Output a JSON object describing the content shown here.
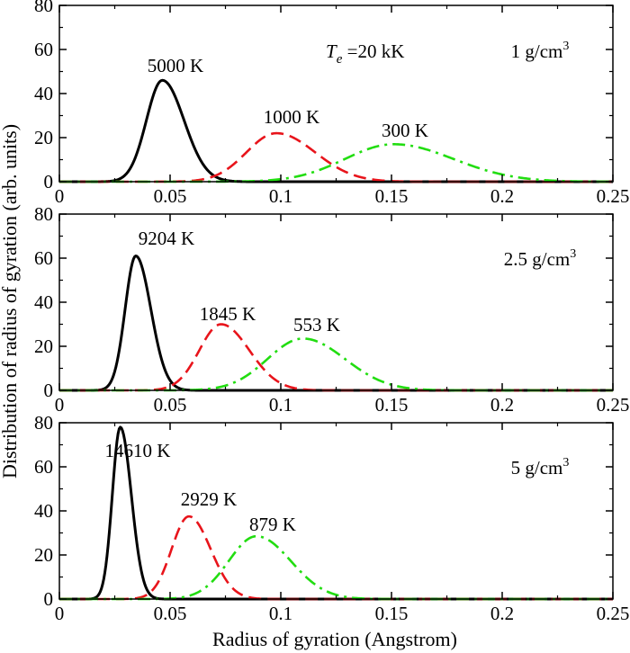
{
  "chart_data": {
    "type": "line",
    "xlabel": "Radius of gyration (Angstrom)",
    "ylabel": "Distribution of radius of gyration (arb. units)",
    "xlim": [
      0,
      0.25
    ],
    "ylim": [
      0,
      80
    ],
    "x_ticks": [
      "0",
      "0.05",
      "0.1",
      "0.15",
      "0.2",
      "0.25"
    ],
    "y_ticks": [
      "0",
      "20",
      "40",
      "60",
      "80"
    ],
    "grid": false,
    "series_styles": [
      {
        "color": "#000000",
        "dash": "solid"
      },
      {
        "color": "#e8141b",
        "dash": "dashed"
      },
      {
        "color": "#22dd11",
        "dash": "dashdot"
      }
    ],
    "panels": [
      {
        "annotation": {
          "prefix": "T",
          "subscript": "e",
          "suffix": " =20 kK"
        },
        "density": {
          "main": "1 g/cm",
          "sup": "3"
        },
        "series": [
          {
            "name": "5000 K",
            "mu": 0.0465,
            "peak": 46,
            "sigma_left": 0.0072,
            "sigma_right": 0.0098
          },
          {
            "name": "1000 K",
            "mu": 0.098,
            "peak": 22,
            "sigma_left": 0.0135,
            "sigma_right": 0.0175
          },
          {
            "name": "300 K",
            "mu": 0.151,
            "peak": 17,
            "sigma_left": 0.022,
            "sigma_right": 0.027
          }
        ]
      },
      {
        "density": {
          "main": "2.5 g/cm",
          "sup": "3"
        },
        "series": [
          {
            "name": "9204 K",
            "mu": 0.0345,
            "peak": 61,
            "sigma_left": 0.0048,
            "sigma_right": 0.0068
          },
          {
            "name": "1845 K",
            "mu": 0.073,
            "peak": 30,
            "sigma_left": 0.0098,
            "sigma_right": 0.0128
          },
          {
            "name": "553 K",
            "mu": 0.11,
            "peak": 23.5,
            "sigma_left": 0.016,
            "sigma_right": 0.019
          }
        ]
      },
      {
        "density": {
          "main": "5 g/cm",
          "sup": "3"
        },
        "series": [
          {
            "name": "14610 K",
            "mu": 0.0275,
            "peak": 78,
            "sigma_left": 0.0036,
            "sigma_right": 0.005
          },
          {
            "name": "2929 K",
            "mu": 0.0585,
            "peak": 37.5,
            "sigma_left": 0.0078,
            "sigma_right": 0.0098
          },
          {
            "name": "879 K",
            "mu": 0.089,
            "peak": 28.5,
            "sigma_left": 0.0125,
            "sigma_right": 0.0155
          }
        ]
      }
    ]
  }
}
